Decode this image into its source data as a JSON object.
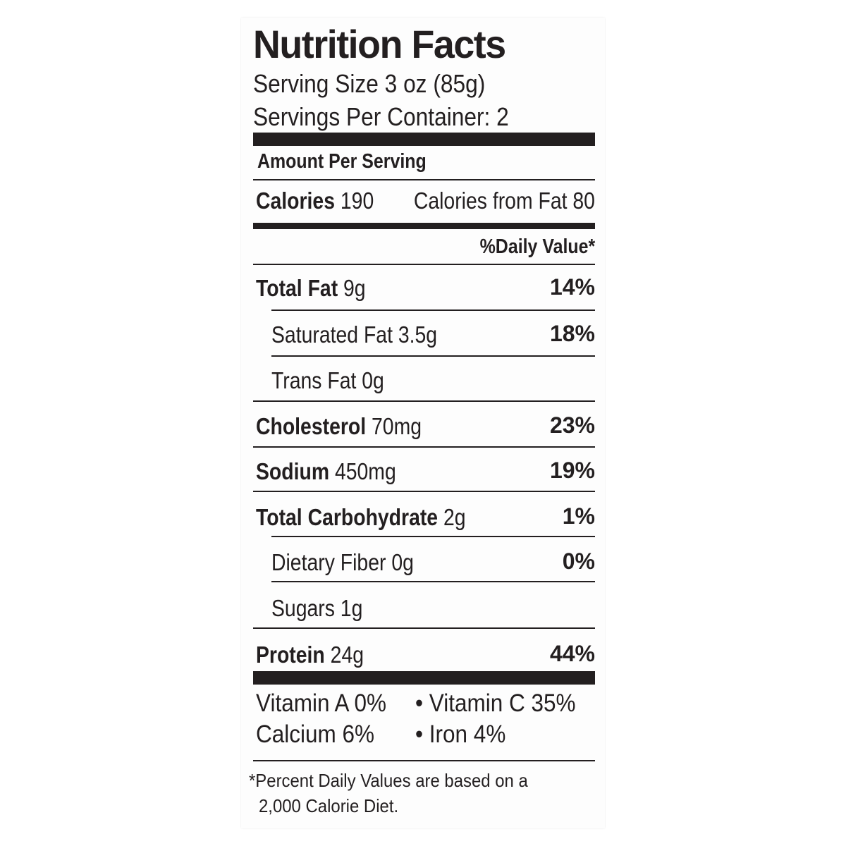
{
  "title": "Nutrition Facts",
  "serving_size": "Serving Size 3 oz (85g)",
  "servings_per_container": "Servings Per Container: 2",
  "amount_per_serving": "Amount Per Serving",
  "calories": {
    "label": "Calories",
    "value": "190"
  },
  "calories_from_fat": "Calories from Fat 80",
  "daily_value_header": "%Daily Value*",
  "nutrients": [
    {
      "name": "Total Fat",
      "amount": "9g",
      "dv": "14%"
    },
    {
      "name": "Saturated Fat 3.5g",
      "dv": "18%"
    },
    {
      "name": "Trans Fat 0g",
      "dv": ""
    },
    {
      "name": "Cholesterol",
      "amount": "70mg",
      "dv": "23%"
    },
    {
      "name": "Sodium",
      "amount": "450mg",
      "dv": "19%"
    },
    {
      "name": "Total Carbohydrate",
      "amount": "2g",
      "dv": "1%"
    },
    {
      "name": "Dietary Fiber 0g",
      "dv": "0%"
    },
    {
      "name": "Sugars 1g",
      "dv": ""
    },
    {
      "name": "Protein",
      "amount": "24g",
      "dv": "44%"
    }
  ],
  "vitamins": {
    "vitamin_a": "Vitamin A 0%",
    "vitamin_c": "• Vitamin C 35%",
    "calcium": "Calcium 6%",
    "iron": "• Iron 4%"
  },
  "footnote": {
    "line1": "*Percent Daily Values are based on a",
    "line2": "2,000 Calorie Diet."
  }
}
